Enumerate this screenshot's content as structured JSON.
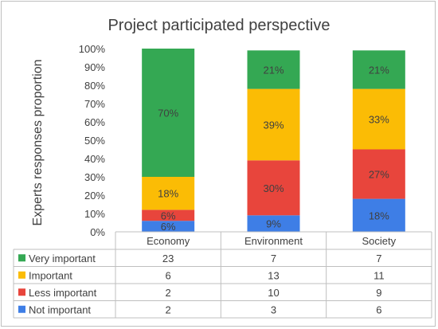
{
  "chart_data": {
    "type": "bar",
    "stacked": true,
    "title": "Project participated perspective",
    "ylabel": "Experts responses proportion",
    "xlabel": "",
    "ylim": [
      0,
      100
    ],
    "yticks": [
      "0%",
      "10%",
      "20%",
      "30%",
      "40%",
      "50%",
      "60%",
      "70%",
      "80%",
      "90%",
      "100%"
    ],
    "categories": [
      "Economy",
      "Environment",
      "Society"
    ],
    "series": [
      {
        "name": "Not important",
        "color": "#3e7ee6",
        "percents": [
          6,
          9,
          18
        ],
        "labels": [
          "6%",
          "9%",
          "18%"
        ],
        "counts": [
          2,
          3,
          6
        ]
      },
      {
        "name": "Less important",
        "color": "#e8453c",
        "percents": [
          6,
          30,
          27
        ],
        "labels": [
          "6%",
          "30%",
          "27%"
        ],
        "counts": [
          2,
          10,
          9
        ]
      },
      {
        "name": "Important",
        "color": "#fbbc05",
        "percents": [
          18,
          39,
          33
        ],
        "labels": [
          "18%",
          "39%",
          "33%"
        ],
        "counts": [
          6,
          13,
          11
        ]
      },
      {
        "name": "Very important",
        "color": "#34a853",
        "percents": [
          70,
          21,
          21
        ],
        "labels": [
          "70%",
          "21%",
          "21%"
        ],
        "counts": [
          23,
          7,
          7
        ]
      }
    ],
    "table_row_order": [
      "Very important",
      "Important",
      "Less important",
      "Not important"
    ],
    "grid": false,
    "legend": "data-table"
  }
}
